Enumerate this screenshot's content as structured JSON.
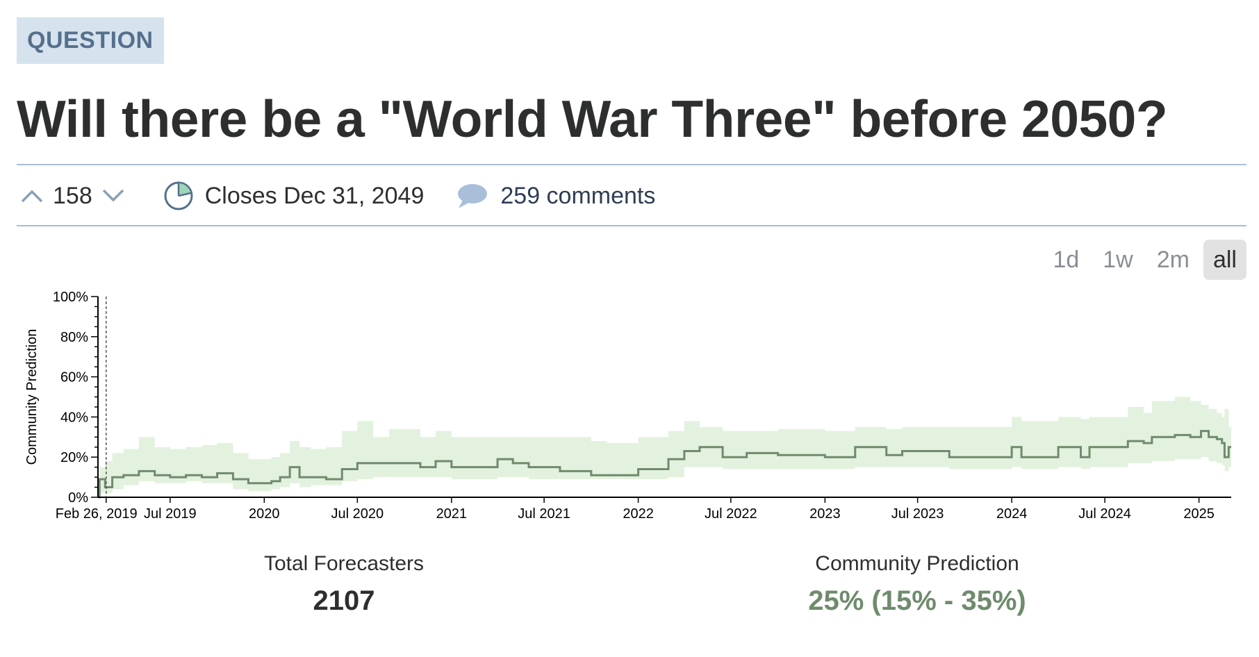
{
  "badge": "QUESTION",
  "title": "Will there be a \"World War Three\" before 2050?",
  "meta": {
    "votes": "158",
    "closes": "Closes Dec 31, 2049",
    "comments": "259 comments"
  },
  "ranges": {
    "options": [
      "1d",
      "1w",
      "2m",
      "all"
    ],
    "active": "all"
  },
  "stats": {
    "forecasters_label": "Total Forecasters",
    "forecasters_value": "2107",
    "prediction_label": "Community Prediction",
    "prediction_value": "25% (15% - 35%)"
  },
  "colors": {
    "line": "#6f8b6c",
    "band": "#e3f1df",
    "band_dark": "#d3ead0",
    "badge_bg": "#d6e3ee",
    "badge_text": "#55708d",
    "prediction_text": "#6f8b6c"
  },
  "chart_data": {
    "type": "line",
    "ylabel": "Community Prediction",
    "ylim": [
      0,
      100
    ],
    "yticks": [
      "0%",
      "20%",
      "40%",
      "60%",
      "80%",
      "100%"
    ],
    "xlim": [
      "2019-02-10",
      "2025-03-05"
    ],
    "xticks": [
      {
        "date": "2019-02-26",
        "label": "Feb 26, 2019"
      },
      {
        "date": "2019-07-01",
        "label": "Jul 2019"
      },
      {
        "date": "2020-01-01",
        "label": "2020"
      },
      {
        "date": "2020-07-01",
        "label": "Jul 2020"
      },
      {
        "date": "2021-01-01",
        "label": "2021"
      },
      {
        "date": "2021-07-01",
        "label": "Jul 2021"
      },
      {
        "date": "2022-01-01",
        "label": "2022"
      },
      {
        "date": "2022-07-01",
        "label": "Jul 2022"
      },
      {
        "date": "2023-01-01",
        "label": "2023"
      },
      {
        "date": "2023-07-01",
        "label": "Jul 2023"
      },
      {
        "date": "2024-01-01",
        "label": "2024"
      },
      {
        "date": "2024-07-01",
        "label": "Jul 2024"
      },
      {
        "date": "2025-01-01",
        "label": "2025"
      }
    ],
    "marker_date": "2019-02-26",
    "series": [
      {
        "points": [
          [
            "2019-02-10",
            0,
            0,
            0
          ],
          [
            "2019-02-13",
            9,
            2,
            15
          ],
          [
            "2019-02-24",
            5,
            2,
            18
          ],
          [
            "2019-03-10",
            10,
            4,
            22
          ],
          [
            "2019-04-01",
            11,
            6,
            24
          ],
          [
            "2019-05-01",
            13,
            8,
            30
          ],
          [
            "2019-06-01",
            11,
            7,
            25
          ],
          [
            "2019-07-01",
            10,
            7,
            24
          ],
          [
            "2019-08-01",
            11,
            8,
            25
          ],
          [
            "2019-09-01",
            10,
            7,
            26
          ],
          [
            "2019-10-01",
            12,
            7,
            27
          ],
          [
            "2019-11-01",
            9,
            4,
            22
          ],
          [
            "2019-12-01",
            7,
            3,
            19
          ],
          [
            "2020-01-15",
            8,
            4,
            20
          ],
          [
            "2020-02-01",
            10,
            5,
            22
          ],
          [
            "2020-02-20",
            15,
            7,
            28
          ],
          [
            "2020-03-10",
            10,
            5,
            25
          ],
          [
            "2020-04-01",
            10,
            6,
            24
          ],
          [
            "2020-05-01",
            9,
            6,
            25
          ],
          [
            "2020-06-01",
            14,
            8,
            33
          ],
          [
            "2020-07-01",
            17,
            9,
            38
          ],
          [
            "2020-08-01",
            17,
            10,
            30
          ],
          [
            "2020-09-01",
            17,
            10,
            34
          ],
          [
            "2020-11-01",
            15,
            10,
            30
          ],
          [
            "2020-12-01",
            18,
            10,
            33
          ],
          [
            "2021-01-01",
            15,
            9,
            30
          ],
          [
            "2021-03-01",
            15,
            9,
            30
          ],
          [
            "2021-04-01",
            19,
            10,
            30
          ],
          [
            "2021-05-01",
            17,
            10,
            30
          ],
          [
            "2021-06-01",
            15,
            9,
            30
          ],
          [
            "2021-08-01",
            13,
            9,
            30
          ],
          [
            "2021-10-01",
            11,
            9,
            28
          ],
          [
            "2021-11-01",
            11,
            9,
            27
          ],
          [
            "2021-12-01",
            11,
            9,
            27
          ],
          [
            "2022-01-01",
            14,
            9,
            30
          ],
          [
            "2022-03-01",
            19,
            10,
            33
          ],
          [
            "2022-04-01",
            23,
            15,
            38
          ],
          [
            "2022-05-01",
            25,
            15,
            35
          ],
          [
            "2022-06-15",
            20,
            14,
            33
          ],
          [
            "2022-08-01",
            22,
            14,
            33
          ],
          [
            "2022-10-01",
            21,
            14,
            34
          ],
          [
            "2023-01-01",
            20,
            14,
            33
          ],
          [
            "2023-03-01",
            25,
            15,
            35
          ],
          [
            "2023-05-01",
            21,
            15,
            34
          ],
          [
            "2023-06-01",
            23,
            15,
            35
          ],
          [
            "2023-09-01",
            20,
            14,
            35
          ],
          [
            "2024-01-01",
            25,
            15,
            40
          ],
          [
            "2024-01-20",
            20,
            14,
            38
          ],
          [
            "2024-04-01",
            25,
            15,
            40
          ],
          [
            "2024-05-15",
            20,
            14,
            39
          ],
          [
            "2024-06-01",
            25,
            15,
            40
          ],
          [
            "2024-08-15",
            28,
            17,
            45
          ],
          [
            "2024-09-15",
            27,
            17,
            42
          ],
          [
            "2024-10-01",
            30,
            18,
            48
          ],
          [
            "2024-11-15",
            31,
            19,
            50
          ],
          [
            "2024-12-15",
            30,
            19,
            48
          ],
          [
            "2025-01-05",
            33,
            20,
            46
          ],
          [
            "2025-01-20",
            30,
            18,
            44
          ],
          [
            "2025-02-05",
            29,
            17,
            42
          ],
          [
            "2025-02-15",
            27,
            16,
            40
          ],
          [
            "2025-02-20",
            20,
            13,
            44
          ],
          [
            "2025-02-28",
            25,
            15,
            35
          ],
          [
            "2025-03-05",
            25,
            15,
            35
          ]
        ]
      }
    ]
  }
}
